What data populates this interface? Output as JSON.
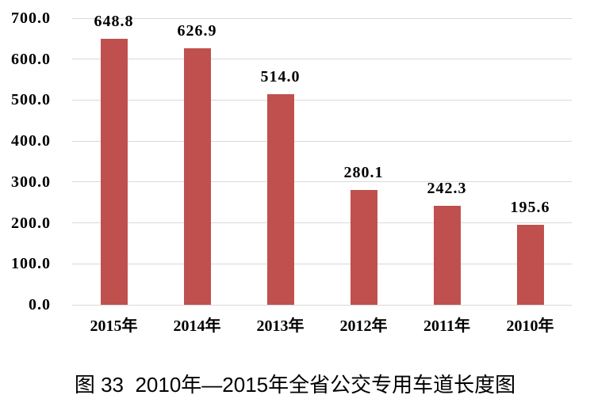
{
  "caption": "图 33  2010年—2015年全省公交专用车道长度图",
  "colors": {
    "bar": "#C0504D",
    "gridline": "#D9D9D9",
    "text": "#000000",
    "background": "#FFFFFF"
  },
  "chart_data": {
    "type": "bar",
    "categories": [
      "2015年",
      "2014年",
      "2013年",
      "2012年",
      "2011年",
      "2010年"
    ],
    "values": [
      648.8,
      626.9,
      514.0,
      280.1,
      242.3,
      195.6
    ],
    "value_labels": [
      "648.8",
      "626.9",
      "514.0",
      "280.1",
      "242.3",
      "195.6"
    ],
    "title": "图 33  2010年—2015年全省公交专用车道长度图",
    "xlabel": "",
    "ylabel": "",
    "ylim": [
      0,
      700
    ],
    "ytick_step": 100,
    "ytick_labels": [
      "0.0",
      "100.0",
      "200.0",
      "300.0",
      "400.0",
      "500.0",
      "600.0",
      "700.0"
    ],
    "grid": true,
    "legend": false,
    "bar_color": "#C0504D"
  }
}
